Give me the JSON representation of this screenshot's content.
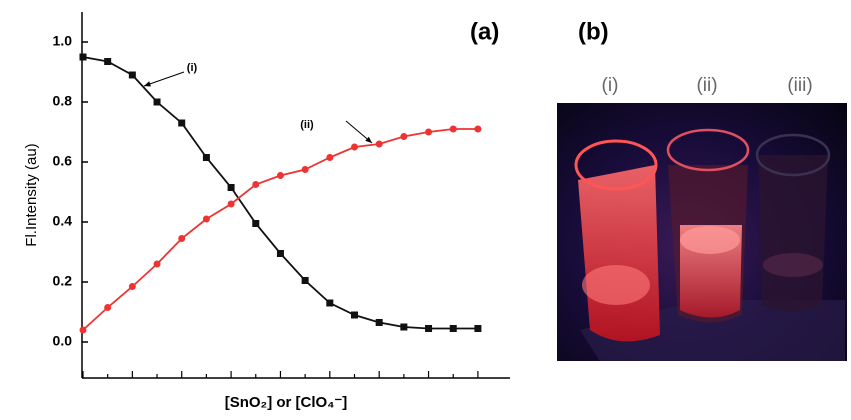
{
  "chart_data": {
    "type": "line",
    "title": "(a)",
    "y_label": "Fl.Intensity (au)",
    "x_label": "[SnO₂] or [ClO₄⁻]",
    "x": [
      0,
      1,
      2,
      3,
      4,
      5,
      6,
      7,
      8,
      9,
      10,
      11,
      12,
      13,
      14,
      15,
      16
    ],
    "xlim": [
      -0.04,
      17.3
    ],
    "ylim": [
      -0.12,
      1.1
    ],
    "yticks": [
      {
        "value": 0,
        "label": "0.0"
      },
      0.2,
      0.4,
      0.6,
      0.8,
      {
        "value": 1,
        "label": "1.0"
      }
    ],
    "series": [
      {
        "name": "(i)",
        "color": "#111111",
        "marker": "square",
        "values": [
          0.95,
          0.935,
          0.89,
          0.8,
          0.73,
          0.615,
          0.515,
          0.395,
          0.295,
          0.205,
          0.13,
          0.09,
          0.065,
          0.05,
          0.045,
          0.045,
          0.045
        ]
      },
      {
        "name": "(ii)",
        "color": "#ee3333",
        "marker": "circle",
        "values": [
          0.04,
          0.115,
          0.185,
          0.26,
          0.345,
          0.41,
          0.46,
          0.525,
          0.555,
          0.575,
          0.615,
          0.65,
          0.66,
          0.685,
          0.7,
          0.71,
          0.71
        ]
      }
    ]
  },
  "panel_b": {
    "title": "(b)",
    "labels": [
      "(i)",
      "(ii)",
      "(iii)"
    ]
  }
}
